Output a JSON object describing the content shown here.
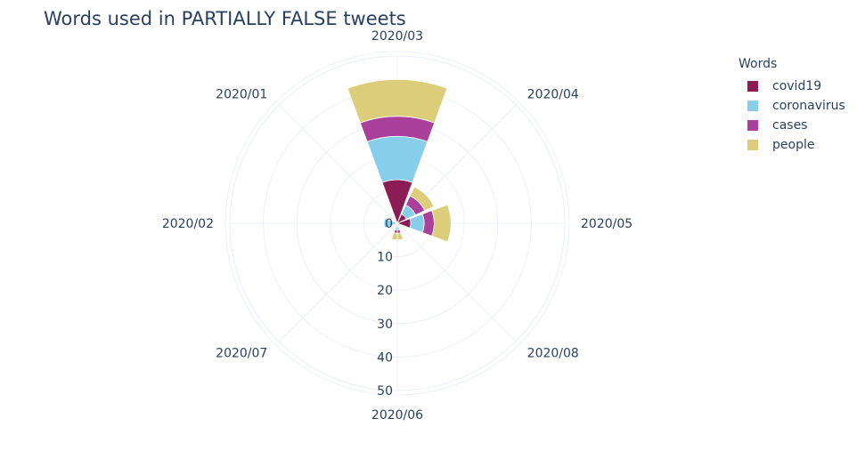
{
  "chart_data": {
    "type": "barpolar",
    "title": "Words used in PARTIALLY FALSE tweets",
    "angular_categories": [
      "2020/01",
      "2020/02",
      "2020/03",
      "2020/04",
      "2020/05",
      "2020/06",
      "2020/07",
      "2020/08"
    ],
    "angular_axis": {
      "direction": "clockwise",
      "rotation_deg": 90,
      "sector_order": [
        "2020/03",
        "2020/04",
        "2020/05",
        "2020/08",
        "2020/06",
        "2020/07",
        "2020/02",
        "2020/01"
      ]
    },
    "radial_axis": {
      "range": [
        0,
        50
      ],
      "ticks": [
        "0",
        "10",
        "20",
        "30",
        "40",
        "50"
      ],
      "angle_deg": -90
    },
    "bars": [
      {
        "category": "2020/03",
        "stacks": [
          13,
          13,
          6,
          11
        ]
      },
      {
        "category": "2020/04",
        "stacks": [
          3,
          3,
          3,
          3
        ]
      },
      {
        "category": "2020/05",
        "stacks": [
          4,
          4,
          3,
          5
        ]
      },
      {
        "category": "2020/06",
        "stacks": [
          1,
          1,
          1,
          2
        ]
      },
      {
        "category": "2020/02",
        "stacks": [
          0,
          4,
          0,
          0
        ]
      }
    ],
    "legend_title": "Words",
    "series": [
      {
        "name": "covid19",
        "color": "#8c1c55"
      },
      {
        "name": "coronavirus",
        "color": "#87ceeb"
      },
      {
        "name": "cases",
        "color": "#aa409c"
      },
      {
        "name": "people",
        "color": "#dccd7a"
      }
    ],
    "grid": true,
    "legend_position": "top-right"
  }
}
